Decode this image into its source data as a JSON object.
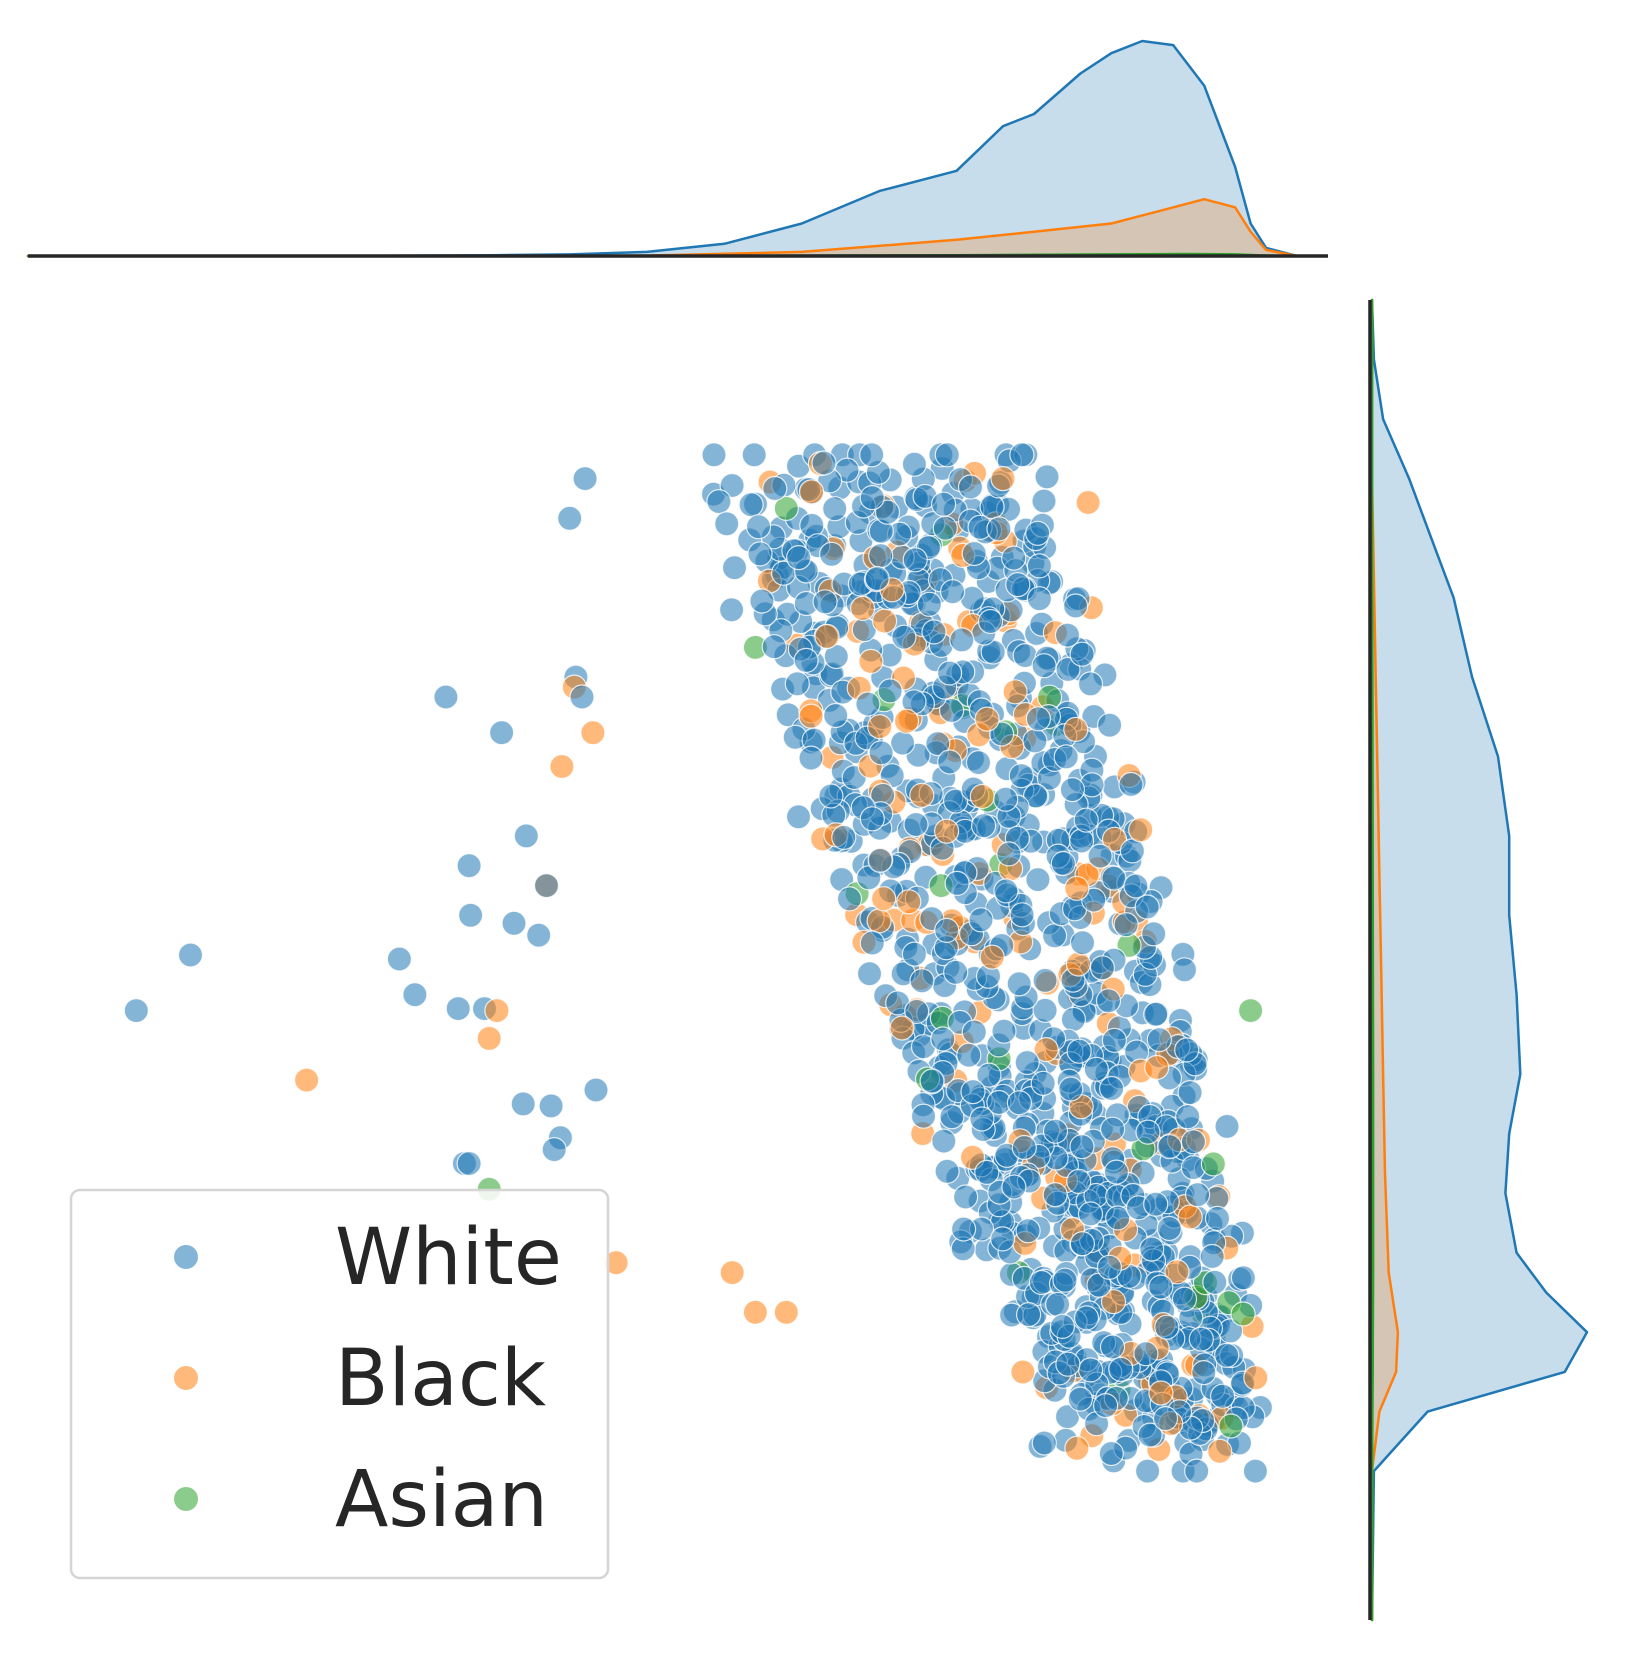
{
  "chart_data": {
    "type": "scatter",
    "title": "",
    "xlabel": "",
    "ylabel": "",
    "xlim": [
      -6.0,
      2.4
    ],
    "ylim": [
      -2.75,
      3.9
    ],
    "grid": false,
    "axes_visible": false,
    "legend": {
      "placement": "lower-left",
      "entries": [
        "White",
        "Black",
        "Asian"
      ]
    },
    "colors": {
      "White": "#1f77b4",
      "Black": "#ff7f0e",
      "Asian": "#2ca02c"
    },
    "marker_alpha": 0.55,
    "marginals": {
      "type": "kde",
      "x_top": {
        "White": {
          "x": [
            -6.0,
            -4.0,
            -3.0,
            -2.5,
            -2.0,
            -1.5,
            -1.0,
            -0.5,
            0.0,
            0.3,
            0.5,
            0.8,
            1.0,
            1.2,
            1.4,
            1.6,
            1.8,
            1.9,
            2.0,
            2.2
          ],
          "density": [
            0.0,
            0.0,
            0.002,
            0.004,
            0.01,
            0.03,
            0.08,
            0.16,
            0.21,
            0.32,
            0.35,
            0.45,
            0.5,
            0.53,
            0.52,
            0.42,
            0.22,
            0.08,
            0.02,
            0.0
          ]
        },
        "Black": {
          "x": [
            -6.0,
            -3.0,
            -2.0,
            -1.0,
            0.0,
            0.5,
            1.0,
            1.3,
            1.6,
            1.8,
            1.9,
            2.0,
            2.2
          ],
          "density": [
            0.0,
            0.0,
            0.001,
            0.01,
            0.04,
            0.06,
            0.08,
            0.11,
            0.14,
            0.12,
            0.06,
            0.015,
            0.0
          ]
        },
        "Asian": {
          "x": [
            -6.0,
            -2.0,
            -1.0,
            0.0,
            1.0,
            1.5,
            1.8,
            2.0,
            2.2
          ],
          "density": [
            0.0,
            0.0,
            0.001,
            0.002,
            0.004,
            0.005,
            0.004,
            0.001,
            0.0
          ]
        }
      },
      "y_right": {
        "White": {
          "y": [
            3.9,
            3.6,
            3.3,
            3.0,
            2.7,
            2.4,
            2.0,
            1.6,
            1.2,
            0.8,
            0.4,
            0.0,
            -0.3,
            -0.6,
            -0.9,
            -1.1,
            -1.3,
            -1.5,
            -1.7,
            -2.0,
            -2.75
          ],
          "density": [
            0.0,
            0.005,
            0.03,
            0.1,
            0.16,
            0.22,
            0.27,
            0.34,
            0.37,
            0.37,
            0.39,
            0.4,
            0.37,
            0.36,
            0.39,
            0.47,
            0.58,
            0.52,
            0.15,
            0.005,
            0.0
          ]
        },
        "Black": {
          "y": [
            3.9,
            3.0,
            2.5,
            2.0,
            1.5,
            1.0,
            0.5,
            0.0,
            -0.5,
            -1.0,
            -1.3,
            -1.5,
            -1.7,
            -2.0,
            -2.75
          ],
          "density": [
            0.0,
            0.0,
            0.005,
            0.01,
            0.015,
            0.02,
            0.025,
            0.03,
            0.035,
            0.045,
            0.07,
            0.065,
            0.02,
            0.0,
            0.0
          ]
        },
        "Asian": {
          "y": [
            3.9,
            2.5,
            2.0,
            1.0,
            0.0,
            -1.0,
            -1.5,
            -2.0,
            -2.75
          ],
          "density": [
            0.0,
            0.0,
            0.001,
            0.002,
            0.003,
            0.003,
            0.002,
            0.0,
            0.0
          ]
        }
      }
    },
    "series": [
      {
        "name": "White",
        "x": [
          -5.3,
          -4.95,
          -3.5,
          -3.15,
          -3.3,
          -2.94,
          -2.78,
          -3.22,
          -3.05,
          -3.15,
          -2.62,
          -2.33,
          -2.56,
          -2.6,
          -2.42,
          -2.46,
          -2.65,
          -2.7,
          -2.8,
          -2.5,
          -2.4,
          -3.6,
          -2.86,
          -3.18,
          -3.14
        ],
        "y": [
          0.32,
          0.6,
          0.4,
          1.05,
          1.9,
          1.72,
          1.2,
          0.33,
          0.33,
          -0.45,
          -0.16,
          -0.08,
          -0.32,
          -0.38,
          1.9,
          2.0,
          0.95,
          0.7,
          -0.15,
          2.8,
          3.0,
          0.58,
          0.76,
          -0.45,
          0.8
        ],
        "cluster": {
          "count": 1100,
          "shape": "tilted ellipse",
          "x_range": [
            -2.2,
            2.05
          ],
          "y_range": [
            -2.0,
            3.15
          ],
          "description_note": "dense core from top-left around (-0.3, 2.9) to bottom-right around (1.5, -1.9)"
        }
      },
      {
        "name": "Black",
        "x": [
          -4.2,
          -3.02,
          -2.97,
          -2.65,
          -2.55,
          -2.47,
          -2.35,
          -2.2,
          0.3,
          0.85,
          -1.3,
          -1.45,
          -1.1,
          1.7
        ],
        "y": [
          -0.03,
          0.18,
          0.32,
          0.95,
          1.55,
          1.95,
          1.72,
          -0.95,
          3.0,
          2.88,
          -1.2,
          -1.0,
          -1.2,
          -1.9
        ],
        "cluster": {
          "count": 170,
          "x_range": [
            -2.0,
            2.0
          ],
          "y_range": [
            -1.9,
            3.0
          ]
        }
      },
      {
        "name": "Asian",
        "x": [
          -3.02,
          -1.1,
          -1.3,
          -0.1,
          0.4,
          1.9
        ],
        "y": [
          -0.58,
          2.85,
          2.15,
          0.95,
          -1.0,
          0.32
        ],
        "cluster": {
          "count": 22,
          "x_range": [
            -1.4,
            1.9
          ],
          "y_range": [
            -1.7,
            2.9
          ]
        }
      }
    ]
  }
}
